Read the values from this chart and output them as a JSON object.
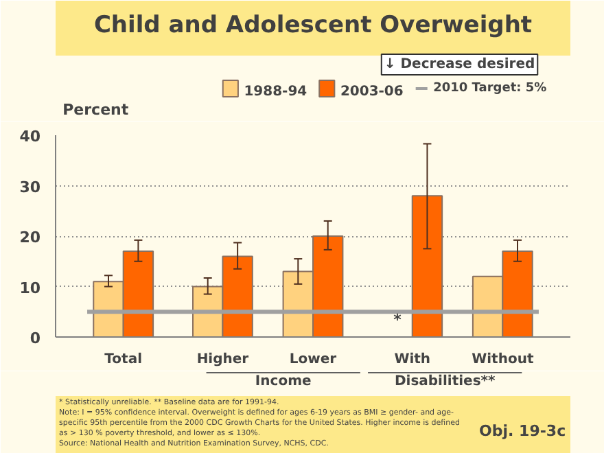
{
  "chart_data": {
    "type": "bar",
    "title": "Child and Adolescent Overweight",
    "ylabel": "Percent",
    "categories": [
      "Total",
      null,
      "Higher",
      "Lower",
      null,
      "With",
      "Without"
    ],
    "series": [
      {
        "name": "1988-94",
        "color": "#ffd27f",
        "values": [
          11,
          null,
          10,
          13,
          null,
          null,
          12
        ],
        "errors": [
          [
            10,
            12.2
          ],
          null,
          [
            8.5,
            11.7
          ],
          [
            10.5,
            15.5
          ],
          null,
          null,
          null
        ]
      },
      {
        "name": "2003-06",
        "color": "#ff6600",
        "values": [
          17,
          null,
          16,
          20,
          null,
          28,
          17
        ],
        "errors": [
          [
            15,
            19.2
          ],
          null,
          [
            13.5,
            18.7
          ],
          [
            17.3,
            23
          ],
          null,
          [
            17.5,
            38.3
          ],
          [
            15,
            19.2
          ]
        ]
      }
    ],
    "ylim": [
      0,
      40
    ],
    "yticks": [
      0,
      10,
      20,
      30,
      40
    ],
    "grid": "y",
    "legend": "top",
    "ref_lines": [
      {
        "axis": "y",
        "value": 5,
        "label": "2010 Target: 5%",
        "color": "#a0a0a0"
      }
    ],
    "annotations": [
      {
        "text": "*",
        "x": "With",
        "y": 0
      },
      "Income",
      "Disabilities**",
      "↓ Decrease desired",
      "* Statistically unreliable.  ** Baseline data are for 1991-94.",
      "Note: I = 95% confidence interval. Overweight is defined for ages 6-19 years as BMI ≥ gender- and age-",
      "specific 95th percentile from the 2000 CDC Growth Charts for the United States. Higher income is defined",
      "as > 130 % poverty threshold, and lower as ≤ 130%.",
      "Source: National Health and Nutrition Examination Survey, NCHS, CDC.",
      "Obj. 19-3c"
    ]
  }
}
